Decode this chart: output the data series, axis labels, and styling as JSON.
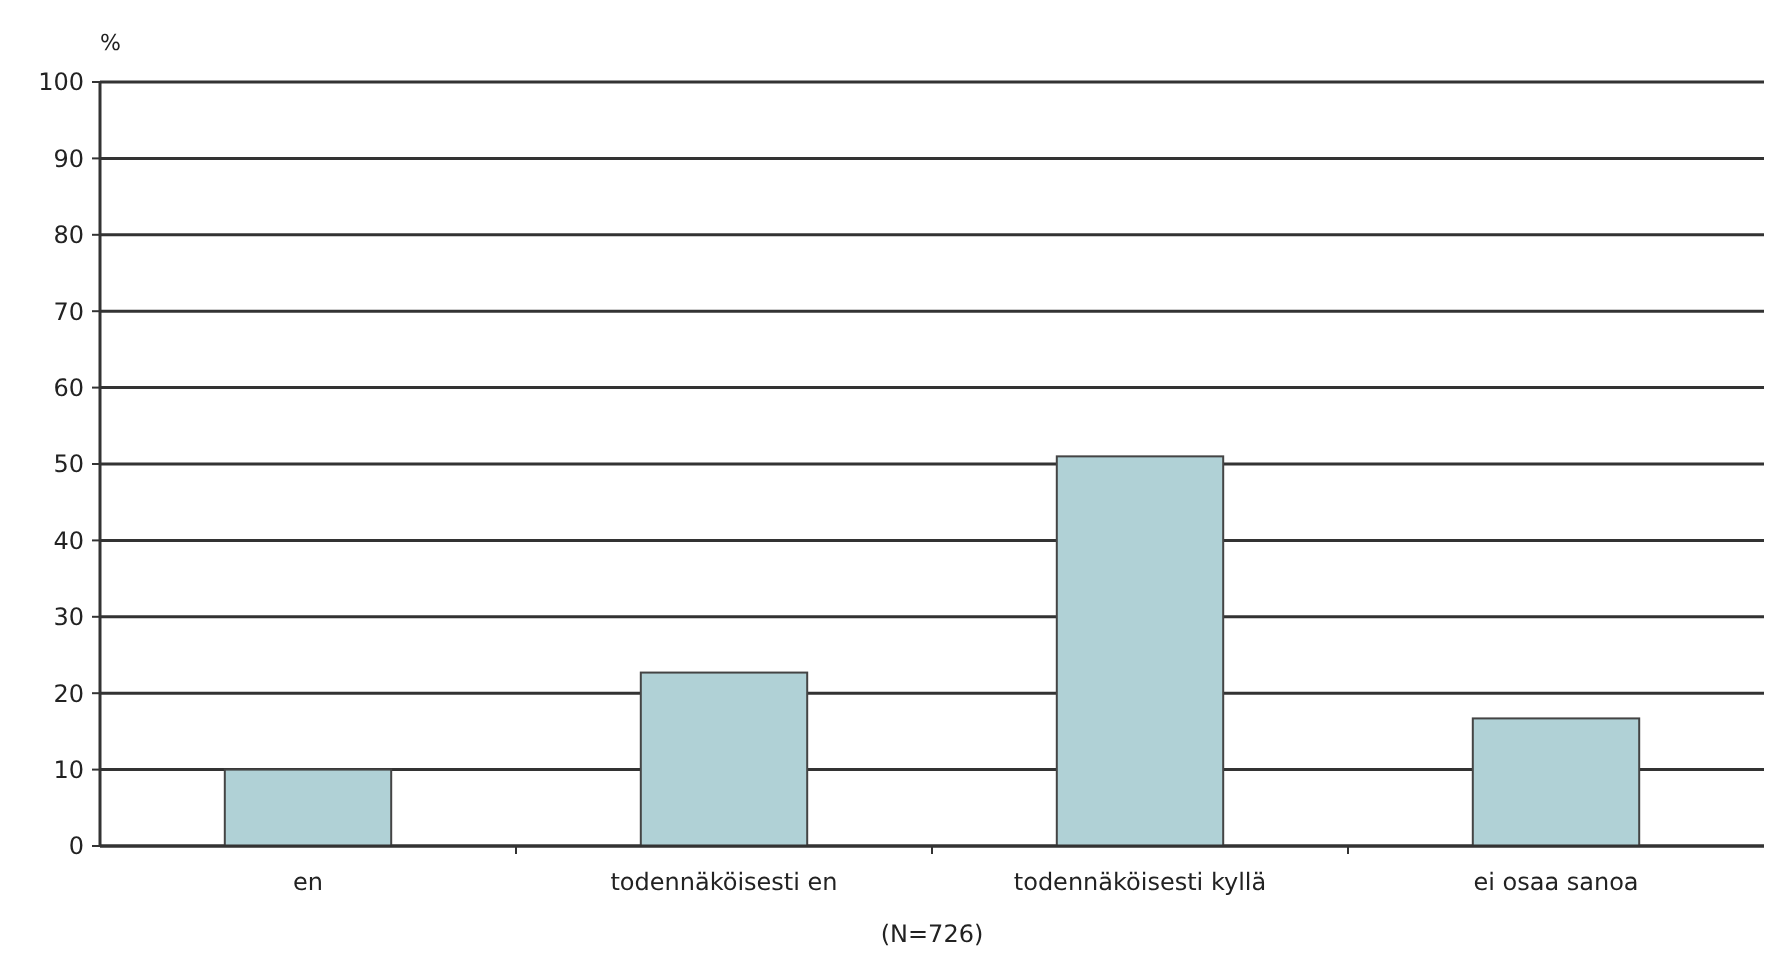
{
  "chart_data": {
    "type": "bar",
    "ylabel": "%",
    "categories": [
      "en",
      "todennäköisesti en",
      "todennäköisesti kyllä",
      "ei osaa sanoa"
    ],
    "values": [
      10,
      22.7,
      51,
      16.7
    ],
    "color": "#b0d1d6",
    "ylim": [
      0,
      100
    ],
    "yticks": [
      0,
      10,
      20,
      30,
      40,
      50,
      60,
      70,
      80,
      90,
      100
    ],
    "grid": "y",
    "annotations": [
      "(N=726)"
    ]
  }
}
